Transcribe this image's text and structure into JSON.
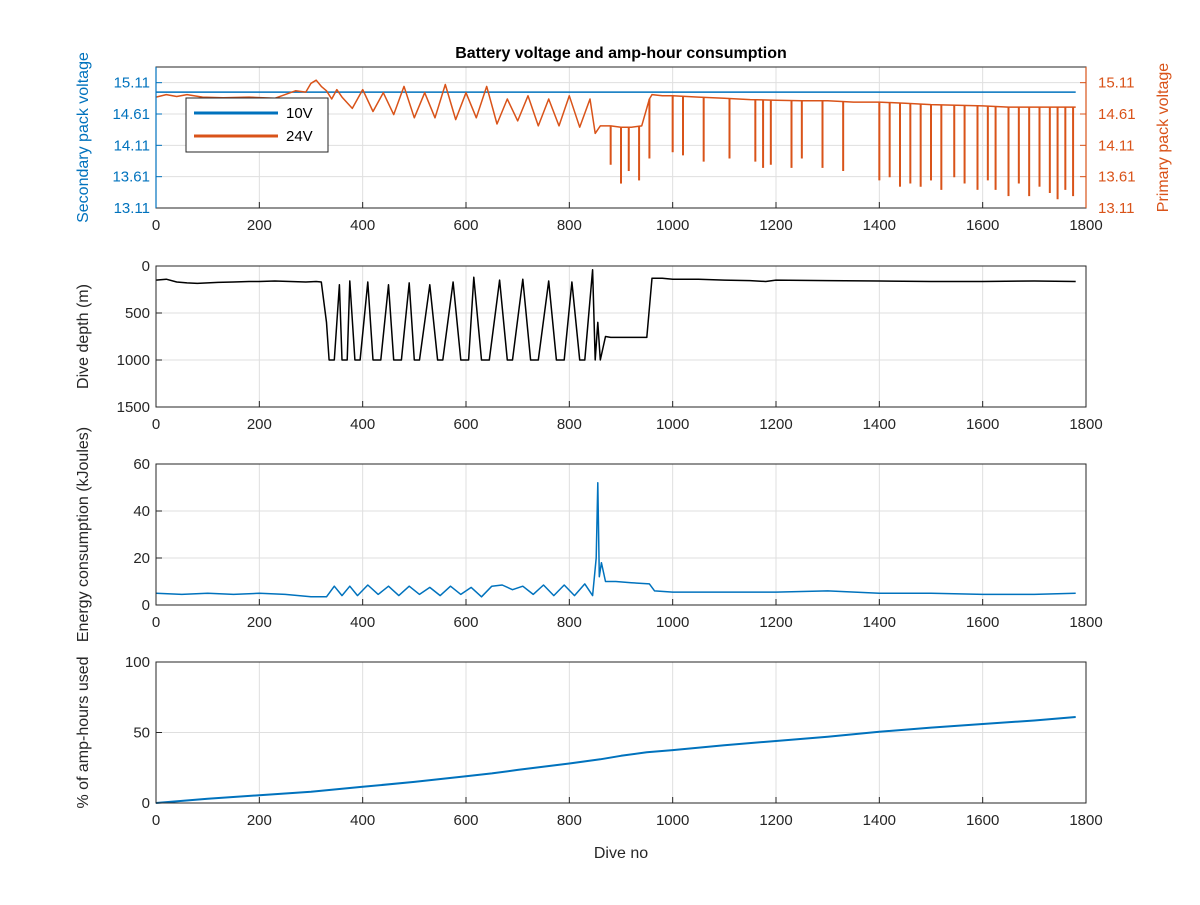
{
  "figure": {
    "title": "Battery voltage and amp-hour consumption",
    "xlabel": "Dive no"
  },
  "colors": {
    "blue": "#0072BD",
    "orange": "#D95319",
    "black": "#000000",
    "grid": "#dfdfdf",
    "axis": "#262626"
  },
  "chart_data": [
    {
      "type": "line",
      "title": "Battery voltage and amp-hour consumption",
      "xlabel": "",
      "ylabel": "Secondary pack voltage",
      "ylabel_right": "Primary pack voltage",
      "xlim": [
        0,
        1800
      ],
      "ylim": [
        13.11,
        15.36
      ],
      "ylim_right": [
        13.11,
        15.36
      ],
      "x_ticks": [
        "0",
        "200",
        "400",
        "600",
        "800",
        "1000",
        "1200",
        "1400",
        "1600",
        "1800"
      ],
      "y_ticks": [
        "13.11",
        "13.61",
        "14.11",
        "14.61",
        "15.11"
      ],
      "y_ticks_right": [
        "13.11",
        "13.61",
        "14.11",
        "14.61",
        "15.11"
      ],
      "grid": true,
      "legend": {
        "position": "top-left",
        "entries": [
          "10V",
          "24V"
        ]
      },
      "series": [
        {
          "name": "10V",
          "axis": "left",
          "x": [
            0,
            1780
          ],
          "y": [
            14.96,
            14.96
          ]
        },
        {
          "name": "24V",
          "axis": "right",
          "x": [
            0,
            20,
            40,
            60,
            90,
            130,
            180,
            230,
            270,
            290,
            300,
            310,
            320,
            330,
            340,
            350,
            360,
            380,
            400,
            420,
            440,
            460,
            480,
            500,
            520,
            540,
            560,
            580,
            600,
            620,
            640,
            660,
            680,
            700,
            720,
            740,
            760,
            780,
            800,
            820,
            840,
            850,
            860,
            880,
            900,
            920,
            940,
            955,
            960,
            980,
            1000,
            1050,
            1100,
            1150,
            1200,
            1250,
            1300,
            1350,
            1400,
            1450,
            1500,
            1550,
            1600,
            1650,
            1700,
            1750,
            1780
          ],
          "y": [
            14.88,
            14.92,
            14.89,
            14.92,
            14.88,
            14.87,
            14.88,
            14.86,
            14.98,
            14.96,
            15.1,
            15.15,
            15.05,
            14.98,
            14.85,
            15.0,
            14.88,
            14.7,
            15.0,
            14.65,
            14.95,
            14.6,
            15.05,
            14.55,
            14.95,
            14.55,
            15.08,
            14.52,
            14.95,
            14.55,
            15.05,
            14.45,
            14.85,
            14.5,
            14.9,
            14.42,
            14.85,
            14.42,
            14.9,
            14.4,
            14.85,
            14.3,
            14.42,
            14.42,
            14.4,
            14.4,
            14.42,
            14.85,
            14.92,
            14.9,
            14.9,
            14.88,
            14.86,
            14.84,
            14.83,
            14.82,
            14.82,
            14.8,
            14.8,
            14.78,
            14.76,
            14.75,
            14.74,
            14.72,
            14.72,
            14.72,
            14.72
          ],
          "dips": [
            {
              "x": 880,
              "y": 13.8
            },
            {
              "x": 900,
              "y": 13.5
            },
            {
              "x": 915,
              "y": 13.7
            },
            {
              "x": 935,
              "y": 13.55
            },
            {
              "x": 955,
              "y": 13.9
            },
            {
              "x": 1000,
              "y": 14.0
            },
            {
              "x": 1020,
              "y": 13.95
            },
            {
              "x": 1060,
              "y": 13.85
            },
            {
              "x": 1110,
              "y": 13.9
            },
            {
              "x": 1160,
              "y": 13.85
            },
            {
              "x": 1175,
              "y": 13.75
            },
            {
              "x": 1190,
              "y": 13.8
            },
            {
              "x": 1230,
              "y": 13.75
            },
            {
              "x": 1250,
              "y": 13.9
            },
            {
              "x": 1290,
              "y": 13.75
            },
            {
              "x": 1330,
              "y": 13.7
            },
            {
              "x": 1400,
              "y": 13.55
            },
            {
              "x": 1420,
              "y": 13.6
            },
            {
              "x": 1440,
              "y": 13.45
            },
            {
              "x": 1460,
              "y": 13.5
            },
            {
              "x": 1480,
              "y": 13.45
            },
            {
              "x": 1500,
              "y": 13.55
            },
            {
              "x": 1520,
              "y": 13.4
            },
            {
              "x": 1545,
              "y": 13.6
            },
            {
              "x": 1565,
              "y": 13.5
            },
            {
              "x": 1590,
              "y": 13.4
            },
            {
              "x": 1610,
              "y": 13.55
            },
            {
              "x": 1625,
              "y": 13.4
            },
            {
              "x": 1650,
              "y": 13.3
            },
            {
              "x": 1670,
              "y": 13.5
            },
            {
              "x": 1690,
              "y": 13.3
            },
            {
              "x": 1710,
              "y": 13.45
            },
            {
              "x": 1730,
              "y": 13.35
            },
            {
              "x": 1745,
              "y": 13.25
            },
            {
              "x": 1760,
              "y": 13.4
            },
            {
              "x": 1775,
              "y": 13.3
            }
          ]
        }
      ]
    },
    {
      "type": "line",
      "ylabel": "Dive depth (m)",
      "xlim": [
        0,
        1800
      ],
      "ylim": [
        1500,
        0
      ],
      "y_reversed": true,
      "x_ticks": [
        "0",
        "200",
        "400",
        "600",
        "800",
        "1000",
        "1200",
        "1400",
        "1600",
        "1800"
      ],
      "y_ticks": [
        "0",
        "500",
        "1000",
        "1500"
      ],
      "grid": true,
      "series": [
        {
          "x": [
            0,
            20,
            40,
            60,
            80,
            100,
            120,
            150,
            180,
            200,
            230,
            260,
            290,
            310,
            320,
            330,
            335,
            345,
            355,
            360,
            370,
            375,
            385,
            395,
            410,
            420,
            435,
            450,
            460,
            475,
            490,
            500,
            510,
            530,
            545,
            555,
            575,
            590,
            605,
            615,
            630,
            645,
            665,
            680,
            690,
            710,
            725,
            740,
            760,
            775,
            790,
            805,
            820,
            830,
            845,
            850,
            855,
            860,
            870,
            880,
            900,
            920,
            950,
            960,
            980,
            1000,
            1050,
            1100,
            1150,
            1180,
            1200,
            1300,
            1400,
            1500,
            1600,
            1700,
            1780
          ],
          "y": [
            150,
            140,
            170,
            180,
            185,
            180,
            175,
            170,
            165,
            165,
            160,
            165,
            170,
            165,
            170,
            600,
            1000,
            1000,
            200,
            1000,
            1000,
            160,
            1000,
            1000,
            170,
            1000,
            1000,
            200,
            1000,
            1000,
            180,
            1000,
            1000,
            200,
            1000,
            1000,
            170,
            1000,
            1000,
            120,
            1000,
            1000,
            150,
            1000,
            1000,
            140,
            1000,
            1000,
            160,
            1000,
            1000,
            170,
            1000,
            1000,
            40,
            1000,
            600,
            1000,
            750,
            760,
            760,
            760,
            760,
            130,
            130,
            140,
            140,
            150,
            155,
            165,
            150,
            155,
            160,
            165,
            165,
            160,
            165
          ]
        }
      ]
    },
    {
      "type": "line",
      "ylabel": "Energy consumption (kJoules)",
      "xlim": [
        0,
        1800
      ],
      "ylim": [
        0,
        60
      ],
      "x_ticks": [
        "0",
        "200",
        "400",
        "600",
        "800",
        "1000",
        "1200",
        "1400",
        "1600",
        "1800"
      ],
      "y_ticks": [
        "0",
        "20",
        "40",
        "60"
      ],
      "grid": true,
      "series": [
        {
          "x": [
            0,
            50,
            100,
            150,
            200,
            250,
            300,
            330,
            345,
            360,
            375,
            390,
            410,
            430,
            450,
            470,
            490,
            510,
            530,
            550,
            570,
            590,
            610,
            630,
            650,
            670,
            690,
            710,
            730,
            750,
            770,
            790,
            810,
            830,
            845,
            852,
            855,
            858,
            862,
            870,
            890,
            920,
            955,
            965,
            1000,
            1100,
            1200,
            1300,
            1400,
            1500,
            1600,
            1700,
            1780
          ],
          "y": [
            5,
            4.5,
            5,
            4.5,
            5,
            4.5,
            3.5,
            3.5,
            8,
            4,
            8,
            4,
            8.5,
            4.5,
            8,
            4,
            8,
            4.5,
            7.5,
            4,
            8,
            4.5,
            7.5,
            3.5,
            8,
            8.5,
            6.5,
            8,
            4.5,
            8.5,
            4,
            8.5,
            4,
            9,
            4,
            20,
            52,
            12,
            18,
            10,
            10,
            9.5,
            9,
            6,
            5.5,
            5.5,
            5.5,
            6,
            5,
            5,
            4.5,
            4.5,
            5
          ]
        }
      ]
    },
    {
      "type": "line",
      "ylabel": "% of amp-hours used",
      "xlabel": "Dive no",
      "xlim": [
        0,
        1800
      ],
      "ylim": [
        0,
        100
      ],
      "x_ticks": [
        "0",
        "200",
        "400",
        "600",
        "800",
        "1000",
        "1200",
        "1400",
        "1600",
        "1800"
      ],
      "y_ticks": [
        "0",
        "50",
        "100"
      ],
      "grid": true,
      "series": [
        {
          "x": [
            0,
            50,
            100,
            200,
            300,
            400,
            500,
            600,
            650,
            700,
            800,
            860,
            900,
            950,
            1000,
            1100,
            1200,
            1300,
            1400,
            1500,
            1600,
            1700,
            1780
          ],
          "y": [
            0,
            1.5,
            3,
            5.5,
            8,
            11.5,
            15,
            19,
            21,
            23.5,
            28,
            31,
            33.5,
            36,
            37.5,
            41,
            44,
            47,
            50.5,
            53.5,
            56,
            58.5,
            61
          ]
        }
      ]
    }
  ]
}
